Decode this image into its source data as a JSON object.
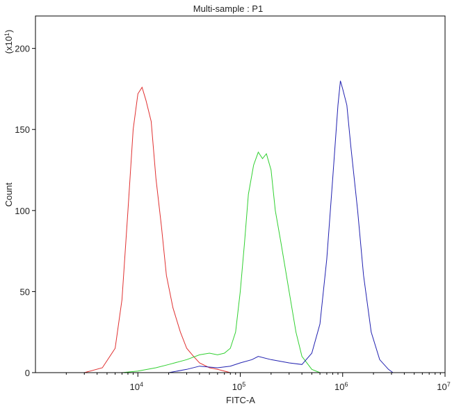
{
  "chart_data": {
    "type": "line",
    "title": "Multi-sample : P1",
    "xlabel": "FITC-A",
    "ylabel": "Count",
    "y_multiplier": "(x10",
    "y_multiplier_exp": "1",
    "y_multiplier_close": ")",
    "x_scale": "log",
    "xlim": [
      1000,
      10000000
    ],
    "ylim": [
      0,
      220
    ],
    "x_ticks": [
      {
        "value": 10000,
        "base": "10",
        "exp": "4"
      },
      {
        "value": 100000,
        "base": "10",
        "exp": "5"
      },
      {
        "value": 1000000,
        "base": "10",
        "exp": "6"
      },
      {
        "value": 10000000,
        "base": "10",
        "exp": "7"
      }
    ],
    "y_ticks": [
      {
        "value": 0,
        "label": "0"
      },
      {
        "value": 50,
        "label": "50"
      },
      {
        "value": 100,
        "label": "100"
      },
      {
        "value": 150,
        "label": "150"
      },
      {
        "value": 200,
        "label": "200"
      }
    ],
    "grid": false,
    "series": [
      {
        "color": "#e03030",
        "x": [
          1800,
          3000,
          4500,
          6000,
          7000,
          8000,
          9000,
          10000,
          11000,
          12000,
          13500,
          15000,
          17000,
          19000,
          22000,
          26000,
          30000,
          35000,
          40000,
          50000,
          60000,
          80000,
          100000
        ],
        "y": [
          0,
          0,
          3,
          15,
          45,
          100,
          150,
          172,
          176,
          168,
          155,
          120,
          90,
          60,
          40,
          25,
          15,
          10,
          6,
          3,
          2,
          0,
          0
        ]
      },
      {
        "color": "#30d030",
        "x": [
          7000,
          10000,
          15000,
          20000,
          30000,
          40000,
          50000,
          60000,
          70000,
          80000,
          90000,
          100000,
          110000,
          120000,
          135000,
          150000,
          165000,
          180000,
          200000,
          220000,
          250000,
          300000,
          350000,
          400000,
          500000,
          600000
        ],
        "y": [
          0,
          1,
          3,
          5,
          8,
          11,
          12,
          11,
          12,
          15,
          25,
          50,
          80,
          110,
          128,
          136,
          132,
          135,
          125,
          100,
          80,
          50,
          25,
          10,
          2,
          0
        ]
      },
      {
        "color": "#2020b0",
        "x": [
          20000,
          30000,
          40000,
          60000,
          80000,
          100000,
          130000,
          150000,
          200000,
          300000,
          400000,
          500000,
          600000,
          700000,
          800000,
          900000,
          950000,
          1000000,
          1100000,
          1200000,
          1400000,
          1600000,
          1900000,
          2300000,
          2800000,
          3100000
        ],
        "y": [
          0,
          2,
          4,
          3,
          4,
          6,
          8,
          10,
          8,
          6,
          5,
          12,
          30,
          70,
          120,
          165,
          180,
          175,
          165,
          140,
          100,
          60,
          25,
          8,
          2,
          0
        ]
      }
    ]
  }
}
